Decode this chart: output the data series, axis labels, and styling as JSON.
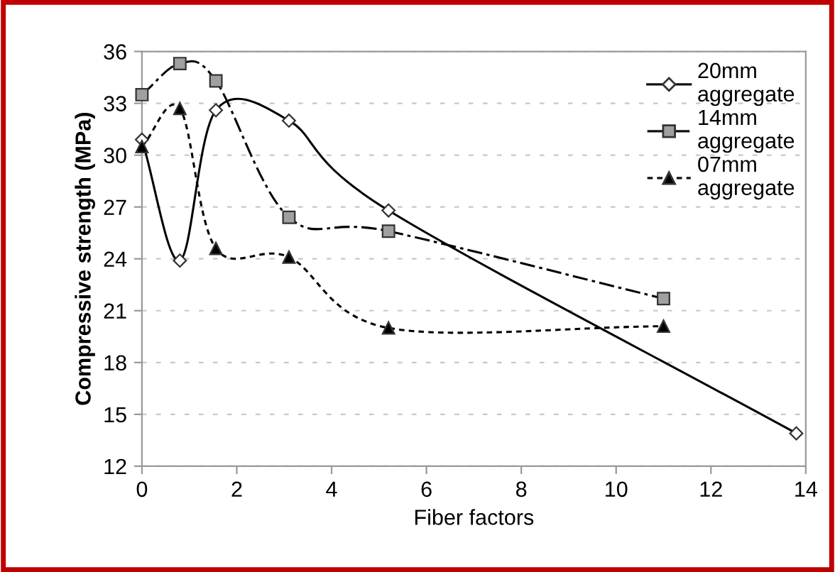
{
  "chart_data": {
    "type": "line",
    "xlabel": "Fiber factors",
    "ylabel": "Compressive strength (MPa)",
    "xlim": [
      0,
      14
    ],
    "xticks": [
      0,
      2,
      4,
      6,
      8,
      10,
      12,
      14
    ],
    "ylim": [
      12,
      36
    ],
    "yticks": [
      12,
      15,
      18,
      21,
      24,
      27,
      30,
      33,
      36
    ],
    "grid": "y",
    "legend": "top right",
    "series": [
      {
        "name": "20mm\naggregate",
        "color": "#ffffff",
        "marker": "diamond",
        "line_style": "solid",
        "x": [
          0,
          0.8,
          1.56,
          3.1,
          5.2,
          13.8
        ],
        "values": [
          30.9,
          23.9,
          32.6,
          32.0,
          26.8,
          13.9
        ]
      },
      {
        "name": "14mm\naggregate",
        "color": "#a0a0a0",
        "marker": "square",
        "line_style": "dashed",
        "x": [
          0,
          0.8,
          1.56,
          3.1,
          5.2,
          11.0
        ],
        "values": [
          33.5,
          35.3,
          34.3,
          26.4,
          25.6,
          21.7
        ]
      },
      {
        "name": "07mm\naggregate",
        "color": "#000000",
        "marker": "triangle",
        "line_style": "dotted",
        "x": [
          0,
          0.8,
          1.56,
          3.1,
          5.2,
          11.0
        ],
        "values": [
          30.5,
          32.7,
          24.6,
          24.1,
          20.0,
          20.1
        ]
      }
    ]
  }
}
